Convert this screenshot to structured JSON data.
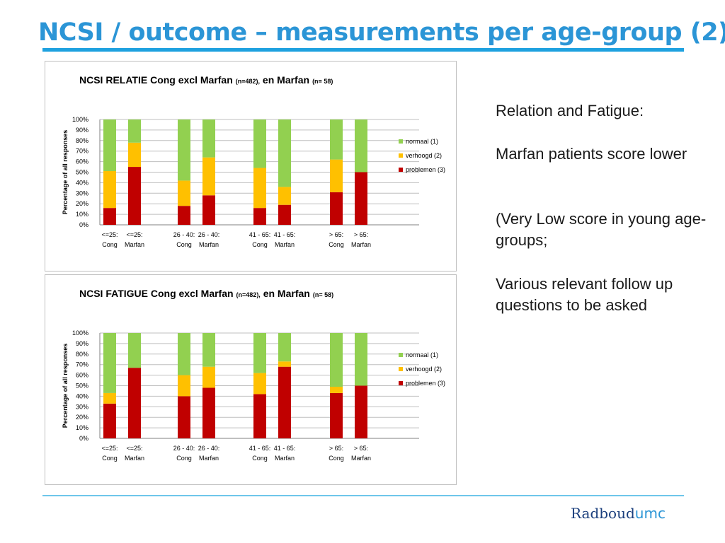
{
  "slide": {
    "title": "NCSI / outcome  – measurements per age-group (2)"
  },
  "text": {
    "heading": "Relation and Fatigue:",
    "finding": "Marfan patients score lower",
    "note1": "(Very Low score in young age-groups;",
    "note2": "Various relevant follow up questions to be asked"
  },
  "logo": {
    "brand": "Radboud",
    "suffix": "umc"
  },
  "colors": {
    "normaal": "#92d050",
    "verhoogd": "#ffc000",
    "problemen": "#c00000",
    "accent": "#2b95d6"
  },
  "chart_data": [
    {
      "type": "bar",
      "stacked": true,
      "title": "NCSI RELATIE  Cong excl Marfan",
      "title_n1": "(n=482),",
      "title_mid": " en Marfan",
      "title_n2": "(n= 58)",
      "ylabel": "Percentage of all responses",
      "ylim": [
        0,
        100
      ],
      "yticks": [
        "0%",
        "10%",
        "20%",
        "30%",
        "40%",
        "50%",
        "60%",
        "70%",
        "80%",
        "90%",
        "100%"
      ],
      "grid": true,
      "legend_position": "right",
      "categories": [
        {
          "top": "<=25:",
          "bottom": "Cong"
        },
        {
          "top": "<=25:",
          "bottom": "Marfan"
        },
        {
          "top": "26 - 40:",
          "bottom": "Cong"
        },
        {
          "top": "26 - 40:",
          "bottom": "Marfan"
        },
        {
          "top": "41 - 65:",
          "bottom": "Cong"
        },
        {
          "top": "41 - 65:",
          "bottom": "Marfan"
        },
        {
          "top": "> 65:",
          "bottom": "Cong"
        },
        {
          "top": "> 65:",
          "bottom": "Marfan"
        }
      ],
      "series": [
        {
          "name": "problemen (3)",
          "color": "#c00000",
          "values": [
            16,
            55,
            18,
            28,
            16,
            19,
            31,
            50
          ]
        },
        {
          "name": "verhoogd (2)",
          "color": "#ffc000",
          "values": [
            35,
            23,
            24,
            36,
            38,
            17,
            31,
            0
          ]
        },
        {
          "name": "normaal (1)",
          "color": "#92d050",
          "values": [
            49,
            22,
            58,
            36,
            46,
            64,
            38,
            50
          ]
        }
      ]
    },
    {
      "type": "bar",
      "stacked": true,
      "title": "NCSI FATIGUE  Cong excl Marfan",
      "title_n1": "(n=482),",
      "title_mid": " en Marfan",
      "title_n2": "(n= 58)",
      "ylabel": "Percentage of all responses",
      "ylim": [
        0,
        100
      ],
      "yticks": [
        "0%",
        "10%",
        "20%",
        "30%",
        "40%",
        "50%",
        "60%",
        "70%",
        "80%",
        "90%",
        "100%"
      ],
      "grid": true,
      "legend_position": "right",
      "categories": [
        {
          "top": "<=25:",
          "bottom": "Cong"
        },
        {
          "top": "<=25:",
          "bottom": "Marfan"
        },
        {
          "top": "26 - 40:",
          "bottom": "Cong"
        },
        {
          "top": "26 - 40:",
          "bottom": "Marfan"
        },
        {
          "top": "41 - 65:",
          "bottom": "Cong"
        },
        {
          "top": "41 - 65:",
          "bottom": "Marfan"
        },
        {
          "top": "> 65:",
          "bottom": "Cong"
        },
        {
          "top": "> 65:",
          "bottom": "Marfan"
        }
      ],
      "series": [
        {
          "name": "problemen (3)",
          "color": "#c00000",
          "values": [
            33,
            67,
            40,
            48,
            42,
            68,
            43,
            50
          ]
        },
        {
          "name": "verhoogd (2)",
          "color": "#ffc000",
          "values": [
            10,
            0,
            20,
            20,
            20,
            5,
            6,
            0
          ]
        },
        {
          "name": "normaal (1)",
          "color": "#92d050",
          "values": [
            57,
            33,
            40,
            32,
            38,
            27,
            51,
            50
          ]
        }
      ]
    }
  ]
}
